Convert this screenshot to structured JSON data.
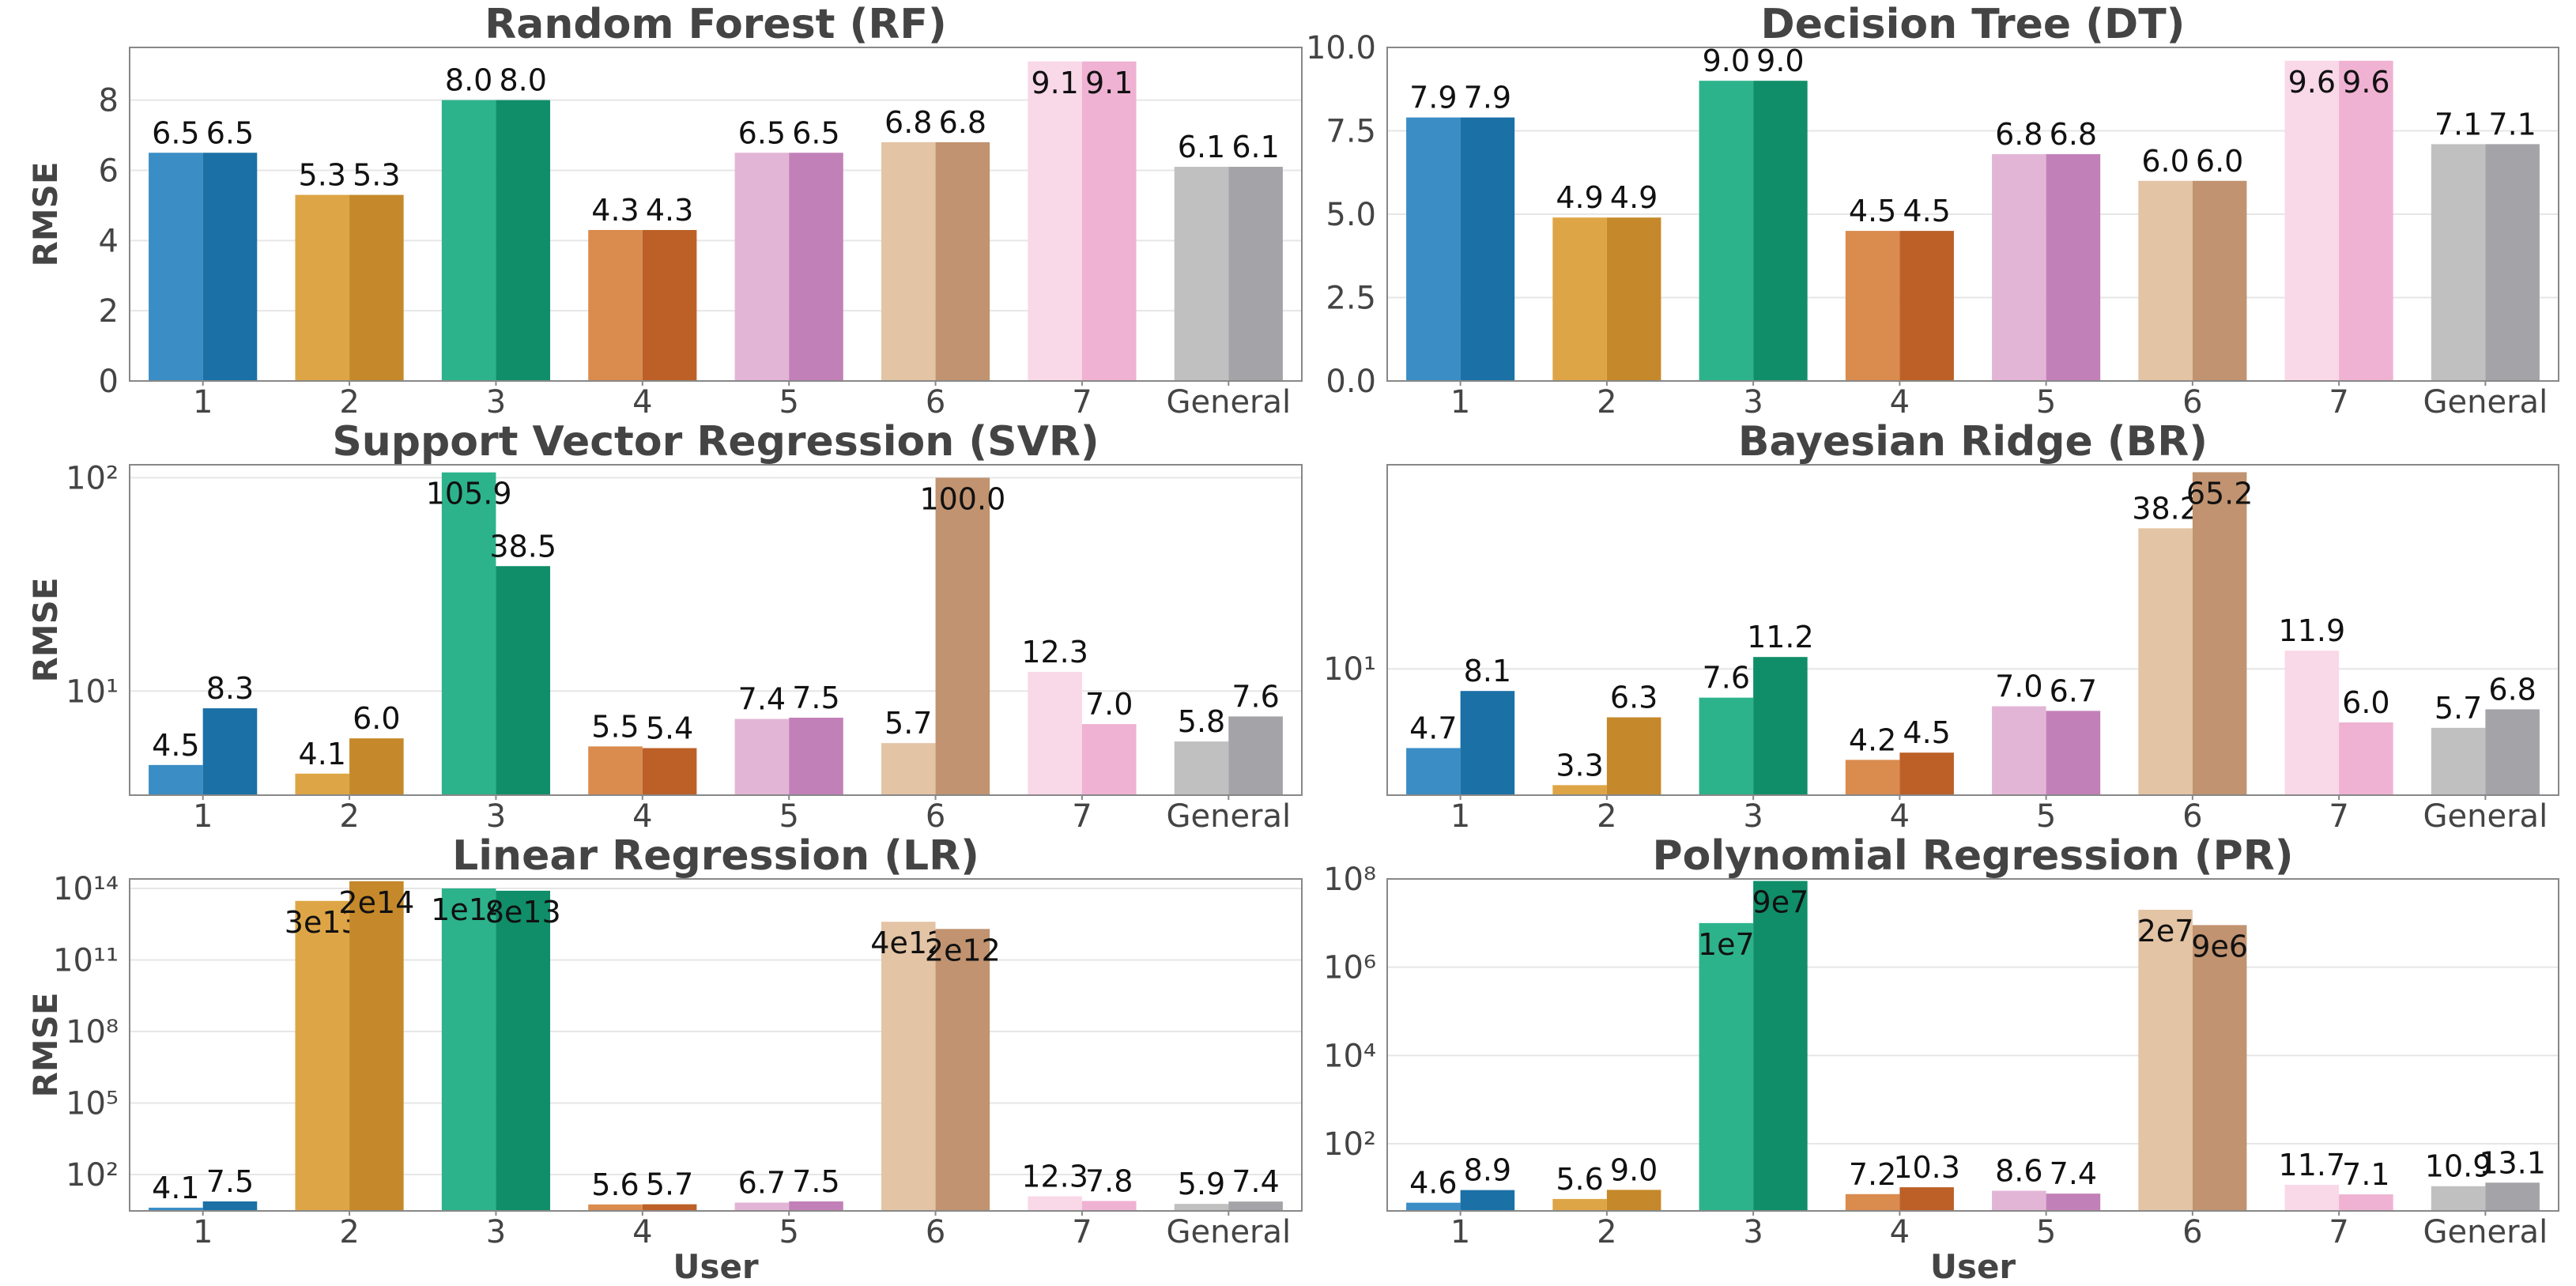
{
  "chart_data": [
    {
      "type": "bar",
      "title": "Random Forest (RF)",
      "xlabel": "",
      "ylabel": "RMSE",
      "yscale": "linear",
      "ylim": [
        0,
        9.5
      ],
      "yticks": [
        0,
        2,
        4,
        6,
        8
      ],
      "ytick_labels": [
        "0",
        "2",
        "4",
        "6",
        "8"
      ],
      "grid": true,
      "categories": [
        "1",
        "2",
        "3",
        "4",
        "5",
        "6",
        "7",
        "General"
      ],
      "series": [
        {
          "name": "series-a",
          "values": [
            6.5,
            5.3,
            8.0,
            4.3,
            6.5,
            6.8,
            9.1,
            6.1
          ],
          "labels": [
            "6.5",
            "5.3",
            "8.0",
            "4.3",
            "6.5",
            "6.8",
            "9.1",
            "6.1"
          ]
        },
        {
          "name": "series-b",
          "values": [
            6.5,
            5.3,
            8.0,
            4.3,
            6.5,
            6.8,
            9.1,
            6.1
          ],
          "labels": [
            "6.5",
            "5.3",
            "8.0",
            "4.3",
            "6.5",
            "6.8",
            "9.1",
            "6.1"
          ]
        }
      ]
    },
    {
      "type": "bar",
      "title": "Decision Tree (DT)",
      "xlabel": "",
      "ylabel": "",
      "yscale": "linear",
      "ylim": [
        0,
        10
      ],
      "yticks": [
        0,
        2.5,
        5,
        7.5,
        10
      ],
      "ytick_labels": [
        "0.0",
        "2.5",
        "5.0",
        "7.5",
        "10.0"
      ],
      "grid": true,
      "categories": [
        "1",
        "2",
        "3",
        "4",
        "5",
        "6",
        "7",
        "General"
      ],
      "series": [
        {
          "name": "series-a",
          "values": [
            7.9,
            4.9,
            9.0,
            4.5,
            6.8,
            6.0,
            9.6,
            7.1
          ],
          "labels": [
            "7.9",
            "4.9",
            "9.0",
            "4.5",
            "6.8",
            "6.0",
            "9.6",
            "7.1"
          ]
        },
        {
          "name": "series-b",
          "values": [
            7.9,
            4.9,
            9.0,
            4.5,
            6.8,
            6.0,
            9.6,
            7.1
          ],
          "labels": [
            "7.9",
            "4.9",
            "9.0",
            "4.5",
            "6.8",
            "6.0",
            "9.6",
            "7.1"
          ]
        }
      ]
    },
    {
      "type": "bar",
      "title": "Support Vector Regression (SVR)",
      "xlabel": "",
      "ylabel": "RMSE",
      "yscale": "log",
      "ylim": [
        3.25,
        115
      ],
      "yticks": [
        10,
        100
      ],
      "ytick_labels": [
        "10¹",
        "10²"
      ],
      "grid": true,
      "categories": [
        "1",
        "2",
        "3",
        "4",
        "5",
        "6",
        "7",
        "General"
      ],
      "series": [
        {
          "name": "series-a",
          "values": [
            4.5,
            4.1,
            105.9,
            5.5,
            7.4,
            5.7,
            12.3,
            5.8
          ],
          "labels": [
            "4.5",
            "4.1",
            "105.9",
            "5.5",
            "7.4",
            "5.7",
            "12.3",
            "5.8"
          ]
        },
        {
          "name": "series-b",
          "values": [
            8.3,
            6.0,
            38.5,
            5.4,
            7.5,
            100.0,
            7.0,
            7.6
          ],
          "labels": [
            "8.3",
            "6.0",
            "38.5",
            "5.4",
            "7.5",
            "100.0",
            "7.0",
            "7.6"
          ]
        }
      ]
    },
    {
      "type": "bar",
      "title": "Bayesian Ridge (BR)",
      "xlabel": "",
      "ylabel": "",
      "yscale": "log",
      "ylim": [
        3.0,
        70
      ],
      "yticks": [
        10
      ],
      "ytick_labels": [
        "10¹"
      ],
      "grid": true,
      "categories": [
        "1",
        "2",
        "3",
        "4",
        "5",
        "6",
        "7",
        "General"
      ],
      "series": [
        {
          "name": "series-a",
          "values": [
            4.7,
            3.3,
            7.6,
            4.2,
            7.0,
            38.2,
            11.9,
            5.7
          ],
          "labels": [
            "4.7",
            "3.3",
            "7.6",
            "4.2",
            "7.0",
            "38.2",
            "11.9",
            "5.7"
          ]
        },
        {
          "name": "series-b",
          "values": [
            8.1,
            6.3,
            11.2,
            4.5,
            6.7,
            65.2,
            6.0,
            6.8
          ],
          "labels": [
            "8.1",
            "6.3",
            "11.2",
            "4.5",
            "6.7",
            "65.2",
            "6.0",
            "6.8"
          ]
        }
      ]
    },
    {
      "type": "bar",
      "title": "Linear Regression (LR)",
      "xlabel": "User",
      "ylabel": "RMSE",
      "yscale": "log",
      "ylim": [
        3.0,
        250000000000000.0
      ],
      "yticks": [
        100,
        100000,
        100000000,
        100000000000,
        100000000000000
      ],
      "ytick_labels": [
        "10²",
        "10⁵",
        "10⁸",
        "10¹¹",
        "10¹⁴"
      ],
      "grid": true,
      "categories": [
        "1",
        "2",
        "3",
        "4",
        "5",
        "6",
        "7",
        "General"
      ],
      "series": [
        {
          "name": "series-a",
          "values": [
            4.1,
            30000000000000.0,
            100000000000000.0,
            5.6,
            6.7,
            4000000000000.0,
            12.3,
            5.9
          ],
          "labels": [
            "4.1",
            "3e13",
            "1e14",
            "5.6",
            "6.7",
            "4e12",
            "12.3",
            "5.9"
          ]
        },
        {
          "name": "series-b",
          "values": [
            7.5,
            200000000000000.0,
            80000000000000.0,
            5.7,
            7.5,
            2000000000000.0,
            7.8,
            7.4
          ],
          "labels": [
            "7.5",
            "2e14",
            "8e13",
            "5.7",
            "7.5",
            "2e12",
            "7.8",
            "7.4"
          ]
        }
      ]
    },
    {
      "type": "bar",
      "title": "Polynomial Regression (PR)",
      "xlabel": "User",
      "ylabel": "",
      "yscale": "log",
      "ylim": [
        3.0,
        100000000.0
      ],
      "yticks": [
        100,
        10000,
        1000000,
        100000000
      ],
      "ytick_labels": [
        "10²",
        "10⁴",
        "10⁶",
        "10⁸"
      ],
      "grid": true,
      "categories": [
        "1",
        "2",
        "3",
        "4",
        "5",
        "6",
        "7",
        "General"
      ],
      "series": [
        {
          "name": "series-a",
          "values": [
            4.6,
            5.6,
            10000000.0,
            7.2,
            8.6,
            20000000.0,
            11.7,
            10.9
          ],
          "labels": [
            "4.6",
            "5.6",
            "1e7",
            "7.2",
            "8.6",
            "2e7",
            "11.7",
            "10.9"
          ]
        },
        {
          "name": "series-b",
          "values": [
            8.9,
            9.0,
            90000000.0,
            10.3,
            7.4,
            9000000.0,
            7.1,
            13.1
          ],
          "labels": [
            "8.9",
            "9.0",
            "9e7",
            "10.3",
            "7.4",
            "9e6",
            "7.1",
            "13.1"
          ]
        }
      ]
    }
  ],
  "palette": {
    "light": [
      "#3a8dc5",
      "#dea546",
      "#2db38c",
      "#da8b4e",
      "#e2b5d6",
      "#e3c4a4",
      "#f9d8e8",
      "#c0c0c0"
    ],
    "dark": [
      "#1b70a6",
      "#c5892b",
      "#108e69",
      "#bc6028",
      "#c280b8",
      "#c19370",
      "#efb2d2",
      "#a3a3a8"
    ]
  }
}
